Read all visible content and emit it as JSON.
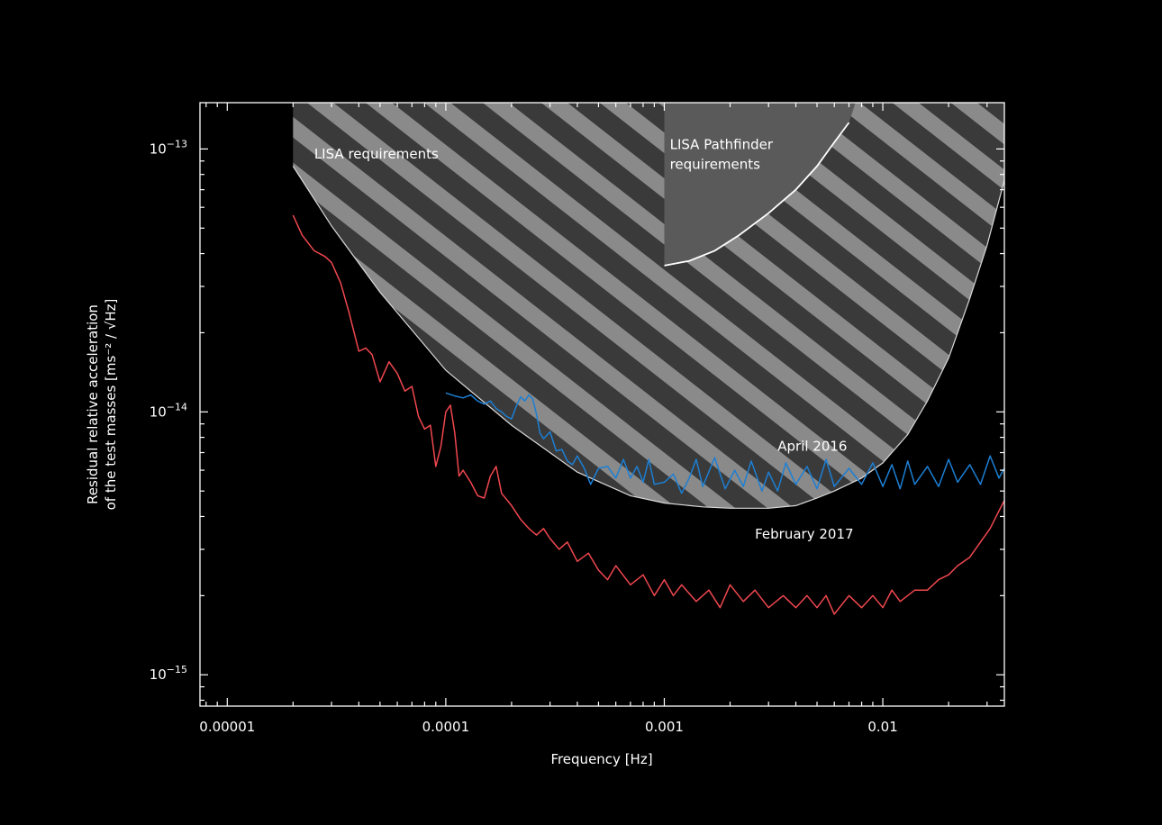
{
  "chart_data": {
    "type": "line",
    "title": "",
    "xlabel": "Frequency [Hz]",
    "ylabel_line1": "Residual relative acceleration",
    "ylabel_line2": "of the test masses [ms⁻² / √Hz]",
    "x_scale": "log",
    "y_scale": "log",
    "xlim": [
      7.5e-06,
      0.036
    ],
    "ylim": [
      7.6e-16,
      1.5e-13
    ],
    "x_ticks": [
      {
        "value": 1e-05,
        "label": "0.00001"
      },
      {
        "value": 0.0001,
        "label": "0.0001"
      },
      {
        "value": 0.001,
        "label": "0.001"
      },
      {
        "value": 0.01,
        "label": "0.01"
      }
    ],
    "y_ticks": [
      {
        "value": 1e-15,
        "base": "10",
        "exp": "−15"
      },
      {
        "value": 1e-14,
        "base": "10",
        "exp": "−14"
      },
      {
        "value": 1e-13,
        "base": "10",
        "exp": "−13"
      }
    ],
    "grid": false,
    "colors": {
      "background": "#000000",
      "axes": "#ffffff",
      "april": "#1c7fd4",
      "february": "#f0474f",
      "region_fill": "#5a5a5a",
      "stripe": "#8f8f8f",
      "boundary": "#d8d8d8"
    },
    "regions": [
      {
        "name": "LISA requirements",
        "label_lines": [
          "LISA requirements"
        ],
        "label_anchor": {
          "x": 2.5e-05,
          "y": 9.2e-14
        },
        "boundary": [
          [
            2e-05,
            1.5e-13
          ],
          [
            2e-05,
            8.6e-14
          ],
          [
            3e-05,
            5.1e-14
          ],
          [
            5e-05,
            2.85e-14
          ],
          [
            0.0001,
            1.44e-14
          ],
          [
            0.0002,
            8.9e-15
          ],
          [
            0.0004,
            5.9e-15
          ],
          [
            0.0007,
            4.8e-15
          ],
          [
            0.001,
            4.5e-15
          ],
          [
            0.0015,
            4.35e-15
          ],
          [
            0.002,
            4.3e-15
          ],
          [
            0.003,
            4.3e-15
          ],
          [
            0.004,
            4.4e-15
          ],
          [
            0.005,
            4.7e-15
          ],
          [
            0.006,
            5e-15
          ],
          [
            0.008,
            5.6e-15
          ],
          [
            0.01,
            6.4e-15
          ],
          [
            0.013,
            8.2e-15
          ],
          [
            0.016,
            1.1e-14
          ],
          [
            0.02,
            1.6e-14
          ],
          [
            0.025,
            2.7e-14
          ],
          [
            0.03,
            4.3e-14
          ],
          [
            0.036,
            7.6e-14
          ],
          [
            0.036,
            1.5e-13
          ]
        ]
      },
      {
        "name": "LISA Pathfinder requirements",
        "label_lines": [
          "LISA Pathfinder",
          "requirements"
        ],
        "label_anchor": {
          "x": 0.00106,
          "y": 1e-13
        },
        "boundary": [
          [
            0.001,
            1.5e-13
          ],
          [
            0.001,
            3.6e-14
          ],
          [
            0.0013,
            3.75e-14
          ],
          [
            0.0017,
            4.1e-14
          ],
          [
            0.0022,
            4.7e-14
          ],
          [
            0.003,
            5.7e-14
          ],
          [
            0.004,
            7e-14
          ],
          [
            0.005,
            8.6e-14
          ],
          [
            0.006,
            1.06e-13
          ],
          [
            0.007,
            1.26e-13
          ],
          [
            0.0075,
            1.5e-13
          ]
        ]
      }
    ],
    "series": [
      {
        "name": "April 2016",
        "label_anchor": {
          "x": 0.0033,
          "y": 7.1e-15
        },
        "color": "#1c7fd4",
        "x": [
          0.0001,
          0.00011,
          0.00012,
          0.00013,
          0.00014,
          0.00015,
          0.00016,
          0.00017,
          0.00018,
          0.00019,
          0.0002,
          0.00021,
          0.00022,
          0.00023,
          0.00024,
          0.00025,
          0.00026,
          0.00027,
          0.00028,
          0.0003,
          0.00032,
          0.00034,
          0.00036,
          0.00038,
          0.0004,
          0.00043,
          0.00046,
          0.0005,
          0.00055,
          0.0006,
          0.00065,
          0.0007,
          0.00075,
          0.0008,
          0.00085,
          0.0009,
          0.001,
          0.0011,
          0.0012,
          0.0013,
          0.0014,
          0.0015,
          0.0017,
          0.0019,
          0.0021,
          0.0023,
          0.0025,
          0.0028,
          0.003,
          0.0033,
          0.0036,
          0.004,
          0.0045,
          0.005,
          0.0055,
          0.006,
          0.007,
          0.008,
          0.009,
          0.01,
          0.011,
          0.012,
          0.013,
          0.014,
          0.016,
          0.018,
          0.02,
          0.022,
          0.025,
          0.028,
          0.031,
          0.034,
          0.036
        ],
        "y": [
          1.18e-14,
          1.15e-14,
          1.13e-14,
          1.16e-14,
          1.1e-14,
          1.07e-14,
          1.1e-14,
          1.03e-14,
          1e-14,
          9.6e-15,
          9.4e-15,
          1.05e-14,
          1.14e-14,
          1.1e-14,
          1.16e-14,
          1.12e-14,
          9.8e-15,
          8.3e-15,
          7.9e-15,
          8.4e-15,
          7.1e-15,
          7.2e-15,
          6.5e-15,
          6.3e-15,
          6.8e-15,
          6.1e-15,
          5.3e-15,
          6.1e-15,
          6.2e-15,
          5.6e-15,
          6.6e-15,
          5.6e-15,
          6.2e-15,
          5.4e-15,
          6.6e-15,
          5.3e-15,
          5.4e-15,
          5.8e-15,
          4.9e-15,
          5.6e-15,
          6.6e-15,
          5.2e-15,
          6.7e-15,
          5.1e-15,
          6e-15,
          5.2e-15,
          6.5e-15,
          5e-15,
          5.9e-15,
          5e-15,
          6.4e-15,
          5.3e-15,
          6.2e-15,
          5.1e-15,
          6.6e-15,
          5.2e-15,
          6.1e-15,
          5.3e-15,
          6.4e-15,
          5.2e-15,
          6.3e-15,
          5.1e-15,
          6.5e-15,
          5.3e-15,
          6.2e-15,
          5.2e-15,
          6.6e-15,
          5.4e-15,
          6.3e-15,
          5.3e-15,
          6.8e-15,
          5.6e-15,
          6.1e-15
        ]
      },
      {
        "name": "February 2017",
        "label_anchor": {
          "x": 0.0026,
          "y": 3.3e-15
        },
        "color": "#f0474f",
        "x": [
          2e-05,
          2.2e-05,
          2.5e-05,
          2.8e-05,
          3e-05,
          3.3e-05,
          3.6e-05,
          4e-05,
          4.3e-05,
          4.6e-05,
          5e-05,
          5.5e-05,
          6e-05,
          6.5e-05,
          7e-05,
          7.5e-05,
          8e-05,
          8.5e-05,
          9e-05,
          9.5e-05,
          0.0001,
          0.000105,
          0.00011,
          0.000115,
          0.00012,
          0.00013,
          0.00014,
          0.00015,
          0.00016,
          0.00017,
          0.00018,
          0.0002,
          0.00022,
          0.00024,
          0.00026,
          0.00028,
          0.0003,
          0.00033,
          0.00036,
          0.0004,
          0.00045,
          0.0005,
          0.00055,
          0.0006,
          0.0007,
          0.0008,
          0.0009,
          0.001,
          0.0011,
          0.0012,
          0.0014,
          0.0016,
          0.0018,
          0.002,
          0.0023,
          0.0026,
          0.003,
          0.0035,
          0.004,
          0.0045,
          0.005,
          0.0055,
          0.006,
          0.007,
          0.008,
          0.009,
          0.01,
          0.011,
          0.012,
          0.014,
          0.016,
          0.018,
          0.02,
          0.022,
          0.025,
          0.028,
          0.031,
          0.034,
          0.036
        ],
        "y": [
          5.6e-14,
          4.7e-14,
          4.1e-14,
          3.9e-14,
          3.7e-14,
          3.1e-14,
          2.4e-14,
          1.7e-14,
          1.75e-14,
          1.65e-14,
          1.3e-14,
          1.55e-14,
          1.4e-14,
          1.2e-14,
          1.25e-14,
          9.6e-15,
          8.6e-15,
          8.9e-15,
          6.2e-15,
          7.4e-15,
          1e-14,
          1.06e-14,
          8.3e-15,
          5.7e-15,
          6e-15,
          5.4e-15,
          4.8e-15,
          4.7e-15,
          5.7e-15,
          6.2e-15,
          4.9e-15,
          4.4e-15,
          3.9e-15,
          3.6e-15,
          3.4e-15,
          3.6e-15,
          3.3e-15,
          3e-15,
          3.2e-15,
          2.7e-15,
          2.9e-15,
          2.5e-15,
          2.3e-15,
          2.6e-15,
          2.2e-15,
          2.4e-15,
          2e-15,
          2.3e-15,
          2e-15,
          2.2e-15,
          1.9e-15,
          2.1e-15,
          1.8e-15,
          2.2e-15,
          1.9e-15,
          2.1e-15,
          1.8e-15,
          2e-15,
          1.8e-15,
          2e-15,
          1.8e-15,
          2e-15,
          1.7e-15,
          2e-15,
          1.8e-15,
          2e-15,
          1.8e-15,
          2.1e-15,
          1.9e-15,
          2.1e-15,
          2.1e-15,
          2.3e-15,
          2.4e-15,
          2.6e-15,
          2.8e-15,
          3.2e-15,
          3.6e-15,
          4.2e-15,
          4.6e-15
        ]
      }
    ]
  }
}
